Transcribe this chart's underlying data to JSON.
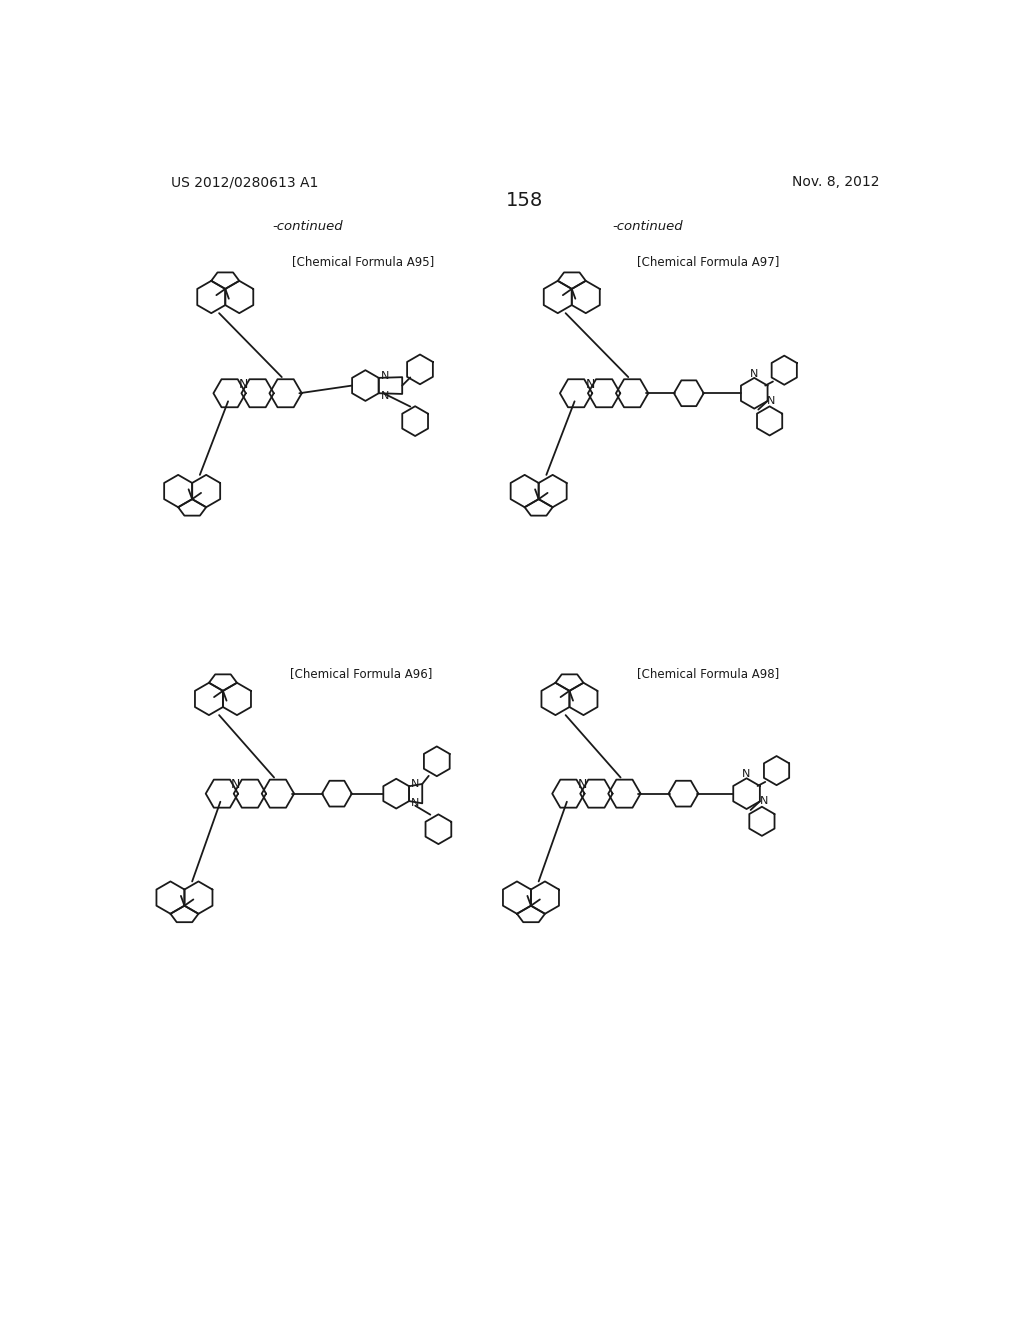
{
  "page_number": "158",
  "patent_number": "US 2012/0280613 A1",
  "date": "Nov. 8, 2012",
  "continued_left": "-continued",
  "continued_right": "-continued",
  "formula_labels": [
    "[Chemical Formula A95]",
    "[Chemical Formula A96]",
    "[Chemical Formula A97]",
    "[Chemical Formula A98]"
  ],
  "background_color": "#ffffff",
  "line_color": "#1a1a1a",
  "text_color": "#1a1a1a"
}
